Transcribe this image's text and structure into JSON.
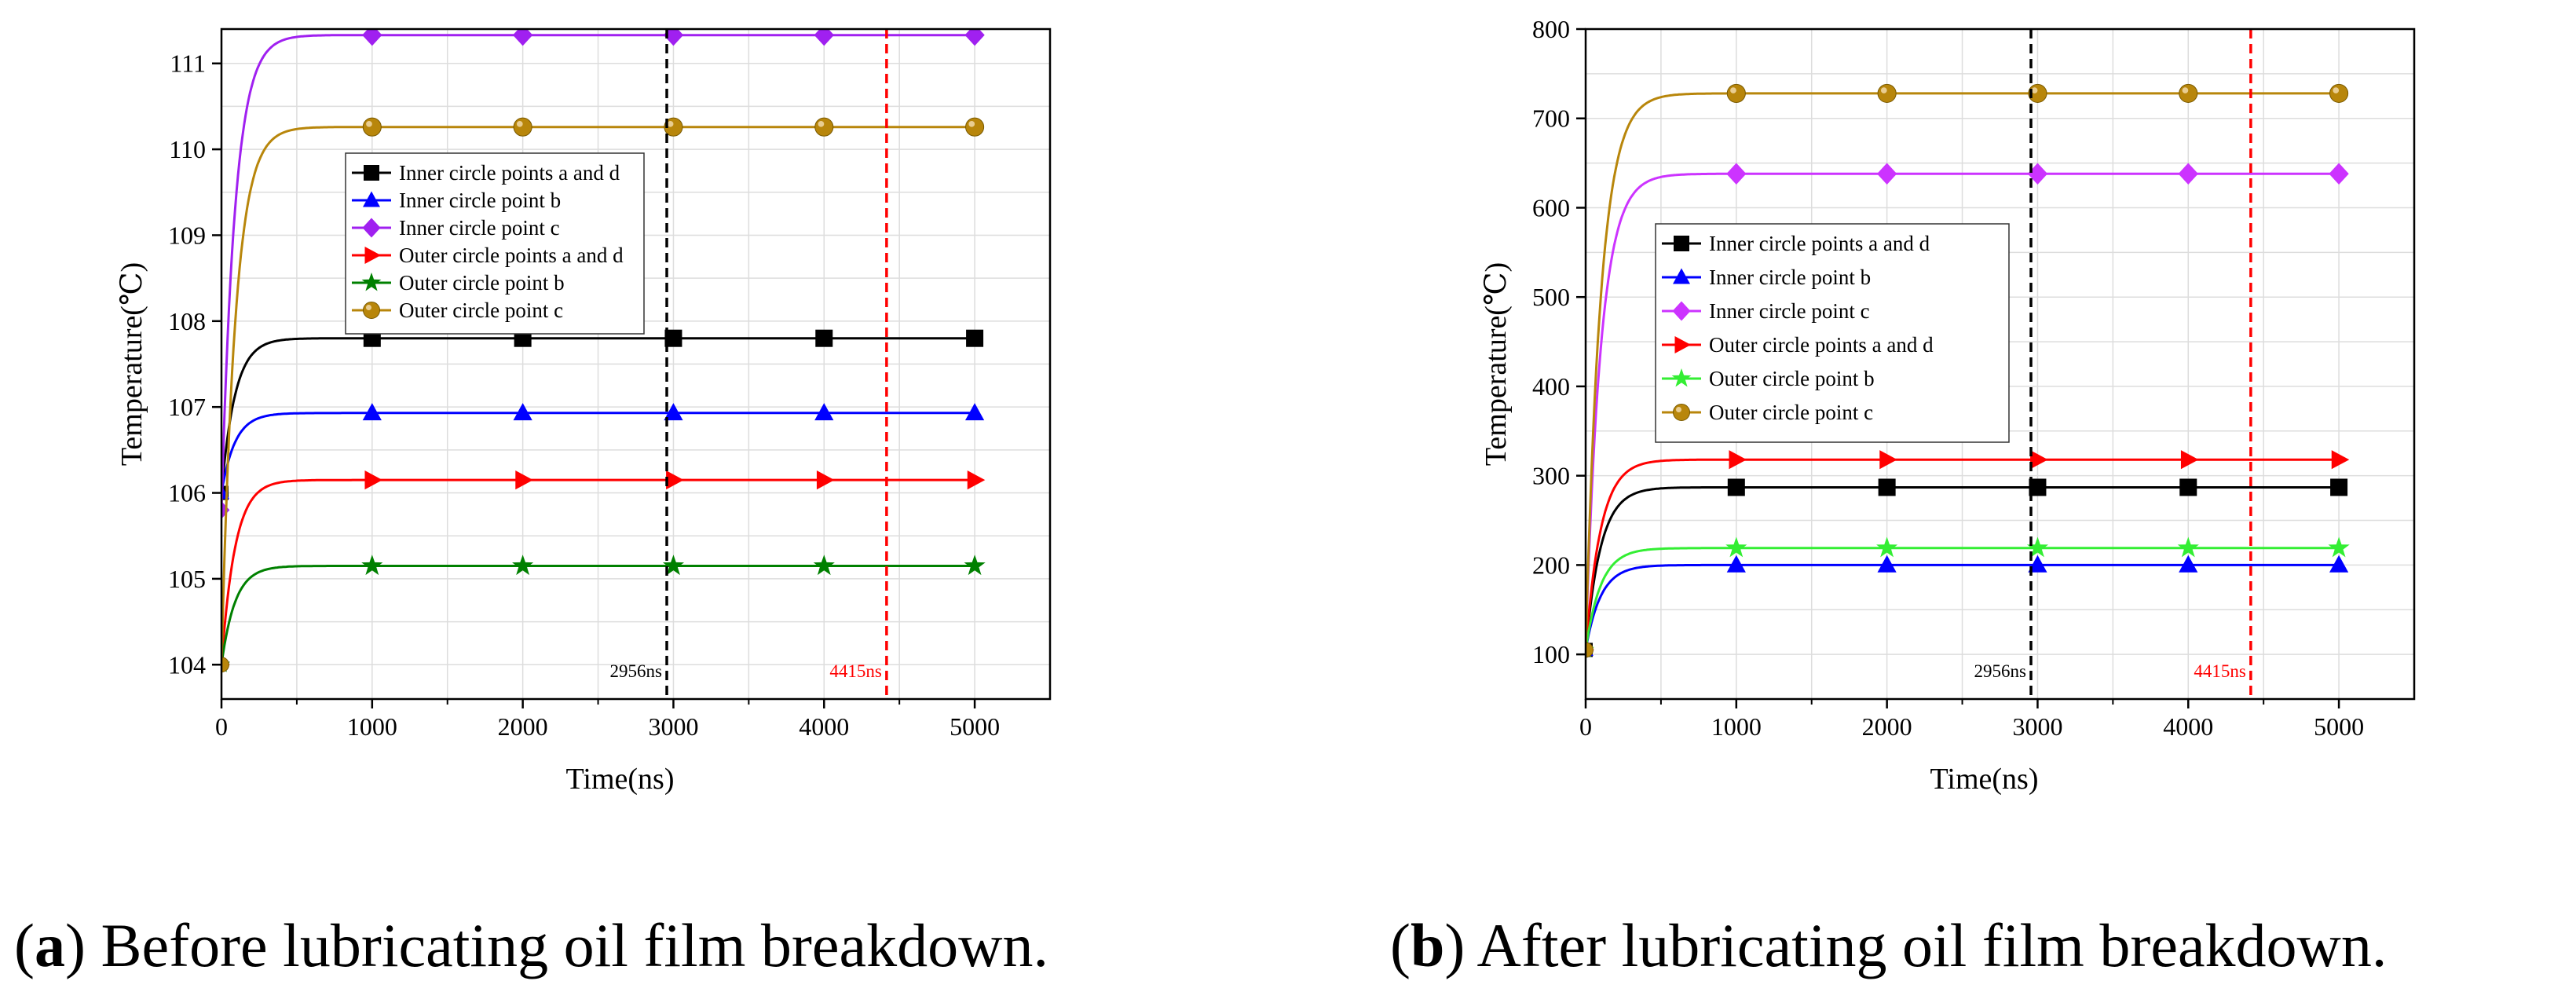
{
  "chart_data": [
    {
      "type": "line",
      "panel": "a",
      "caption_letter": "a",
      "caption_rest": ") Before lubricating oil film breakdown.",
      "xlabel": "Time(ns)",
      "ylabel": "Temperature(℃)",
      "xlim": [
        0,
        5500
      ],
      "ylim": [
        103.6,
        111.4
      ],
      "xticks": [
        0,
        1000,
        2000,
        3000,
        4000,
        5000
      ],
      "yticks": [
        104,
        105,
        106,
        107,
        108,
        109,
        110,
        111
      ],
      "marker_x": [
        1000,
        2000,
        3000,
        4000,
        5000
      ],
      "series": [
        {
          "name": "Inner circle points a and d",
          "color": "#000000",
          "marker": "square",
          "start": 106.0,
          "value": 107.8,
          "tau": 90
        },
        {
          "name": "Inner circle point b",
          "color": "#0000ff",
          "marker": "triangle-up",
          "start": 106.0,
          "value": 106.93,
          "tau": 90
        },
        {
          "name": "Inner circle point c",
          "color": "#a020f0",
          "marker": "diamond",
          "start": 105.8,
          "value": 111.33,
          "tau": 90
        },
        {
          "name": "Outer circle points a and d",
          "color": "#ff0000",
          "marker": "triangle-right",
          "start": 104.0,
          "value": 106.15,
          "tau": 90
        },
        {
          "name": "Outer circle point b",
          "color": "#008000",
          "marker": "star",
          "start": 104.0,
          "value": 105.15,
          "tau": 90
        },
        {
          "name": "Outer circle point c",
          "color": "#b8860b",
          "marker": "circle",
          "start": 104.0,
          "value": 110.26,
          "tau": 90
        }
      ],
      "vlines": [
        {
          "x": 2956,
          "label": "2956ns",
          "color": "#000000"
        },
        {
          "x": 4415,
          "label": "4415ns",
          "color": "#ff0000"
        }
      ]
    },
    {
      "type": "line",
      "panel": "b",
      "caption_letter": "b",
      "caption_rest": ") After lubricating oil film breakdown.",
      "xlabel": "Time(ns)",
      "ylabel": "Temperature(℃)",
      "xlim": [
        0,
        5500
      ],
      "ylim": [
        50,
        800
      ],
      "xticks": [
        0,
        1000,
        2000,
        3000,
        4000,
        5000
      ],
      "yticks": [
        100,
        200,
        300,
        400,
        500,
        600,
        700,
        800
      ],
      "marker_x": [
        1000,
        2000,
        3000,
        4000,
        5000
      ],
      "series": [
        {
          "name": "Inner circle points a and d",
          "color": "#000000",
          "marker": "square",
          "start": 105,
          "value": 287,
          "tau": 100
        },
        {
          "name": "Inner circle point b",
          "color": "#0000ff",
          "marker": "triangle-up",
          "start": 105,
          "value": 200,
          "tau": 100
        },
        {
          "name": "Inner circle point c",
          "color": "#cc33ff",
          "marker": "diamond",
          "start": 105,
          "value": 638,
          "tau": 100
        },
        {
          "name": "Outer circle points a and d",
          "color": "#ff0000",
          "marker": "triangle-right",
          "start": 105,
          "value": 318,
          "tau": 100
        },
        {
          "name": "Outer circle point b",
          "color": "#33ee33",
          "marker": "star",
          "start": 105,
          "value": 219,
          "tau": 100
        },
        {
          "name": "Outer circle point c",
          "color": "#b8860b",
          "marker": "circle",
          "start": 105,
          "value": 728,
          "tau": 100
        }
      ],
      "vlines": [
        {
          "x": 2956,
          "label": "2956ns",
          "color": "#000000"
        },
        {
          "x": 4415,
          "label": "4415ns",
          "color": "#ff0000"
        }
      ]
    }
  ]
}
